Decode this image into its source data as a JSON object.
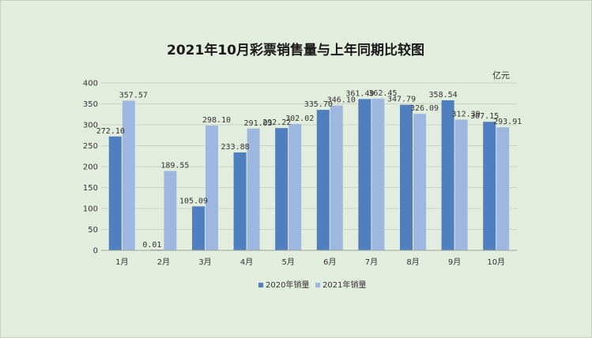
{
  "chart_data": {
    "type": "bar",
    "title": "2021年10月彩票销售量与上年同期比较图",
    "unit": "亿元",
    "xlabel": "",
    "ylabel": "",
    "ylim": [
      0,
      400
    ],
    "yticks": [
      0,
      50,
      100,
      150,
      200,
      250,
      300,
      350,
      400
    ],
    "grid": true,
    "legend_position": "bottom",
    "categories": [
      "1月",
      "2月",
      "3月",
      "4月",
      "5月",
      "6月",
      "7月",
      "8月",
      "9月",
      "10月"
    ],
    "series": [
      {
        "name": "2020年销量",
        "color": "#4f7fbf",
        "values": [
          272.1,
          0.01,
          105.09,
          233.88,
          292.22,
          335.7,
          361.49,
          347.79,
          358.54,
          307.15
        ],
        "labels": [
          "272.10",
          "0.01",
          "105.09",
          "233.88",
          "292.22",
          "335.70",
          "361.49",
          "347.79",
          "358.54",
          "307.15"
        ]
      },
      {
        "name": "2021年销量",
        "color": "#9db7e0",
        "values": [
          357.57,
          189.55,
          298.1,
          291.03,
          302.02,
          346.1,
          362.45,
          326.09,
          312.39,
          293.91
        ],
        "labels": [
          "357.57",
          "189.55",
          "298.10",
          "291.03",
          "302.02",
          "346.10",
          "362.45",
          "326.09",
          "312.39",
          "293.91"
        ]
      }
    ]
  }
}
